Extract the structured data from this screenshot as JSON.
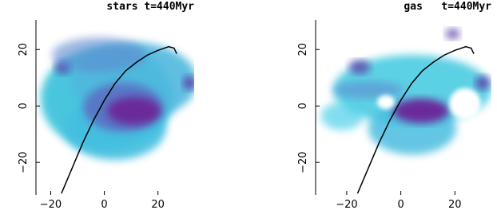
{
  "chart_data": [
    {
      "type": "line",
      "title": "stars t=440Myr",
      "xlim": [
        -25.5,
        33.5
      ],
      "ylim": [
        -31.5,
        30.5
      ],
      "xticks": [
        {
          "value": -20,
          "label": "−20"
        },
        0,
        20
      ],
      "yticks": [
        {
          "value": -20,
          "label": "−20"
        },
        0,
        20
      ],
      "series": [
        {
          "color": "#000000",
          "x": [
            -16,
            -12,
            -8,
            -4,
            0,
            4,
            8,
            12,
            16,
            20,
            24,
            26,
            27
          ],
          "values": [
            -31,
            -22,
            -13,
            -5,
            2,
            8,
            12.5,
            15.5,
            18,
            19.7,
            21,
            20.5,
            18.5
          ]
        }
      ]
    },
    {
      "type": "line",
      "title": "gas   t=440Myr",
      "xlim": [
        -31.5,
        33.5
      ],
      "ylim": [
        -31.5,
        30.5
      ],
      "xticks": [
        {
          "value": -20,
          "label": "−20"
        },
        0,
        20
      ],
      "yticks": [
        {
          "value": -20,
          "label": "−20"
        },
        0,
        20
      ],
      "series": [
        {
          "color": "#000000",
          "x": [
            -16,
            -12,
            -8,
            -4,
            0,
            4,
            8,
            12,
            16,
            20,
            24,
            26,
            27
          ],
          "values": [
            -31,
            -22,
            -13,
            -5,
            2,
            8,
            12.5,
            15.5,
            18,
            19.7,
            21,
            20.5,
            18.5
          ]
        }
      ]
    }
  ]
}
